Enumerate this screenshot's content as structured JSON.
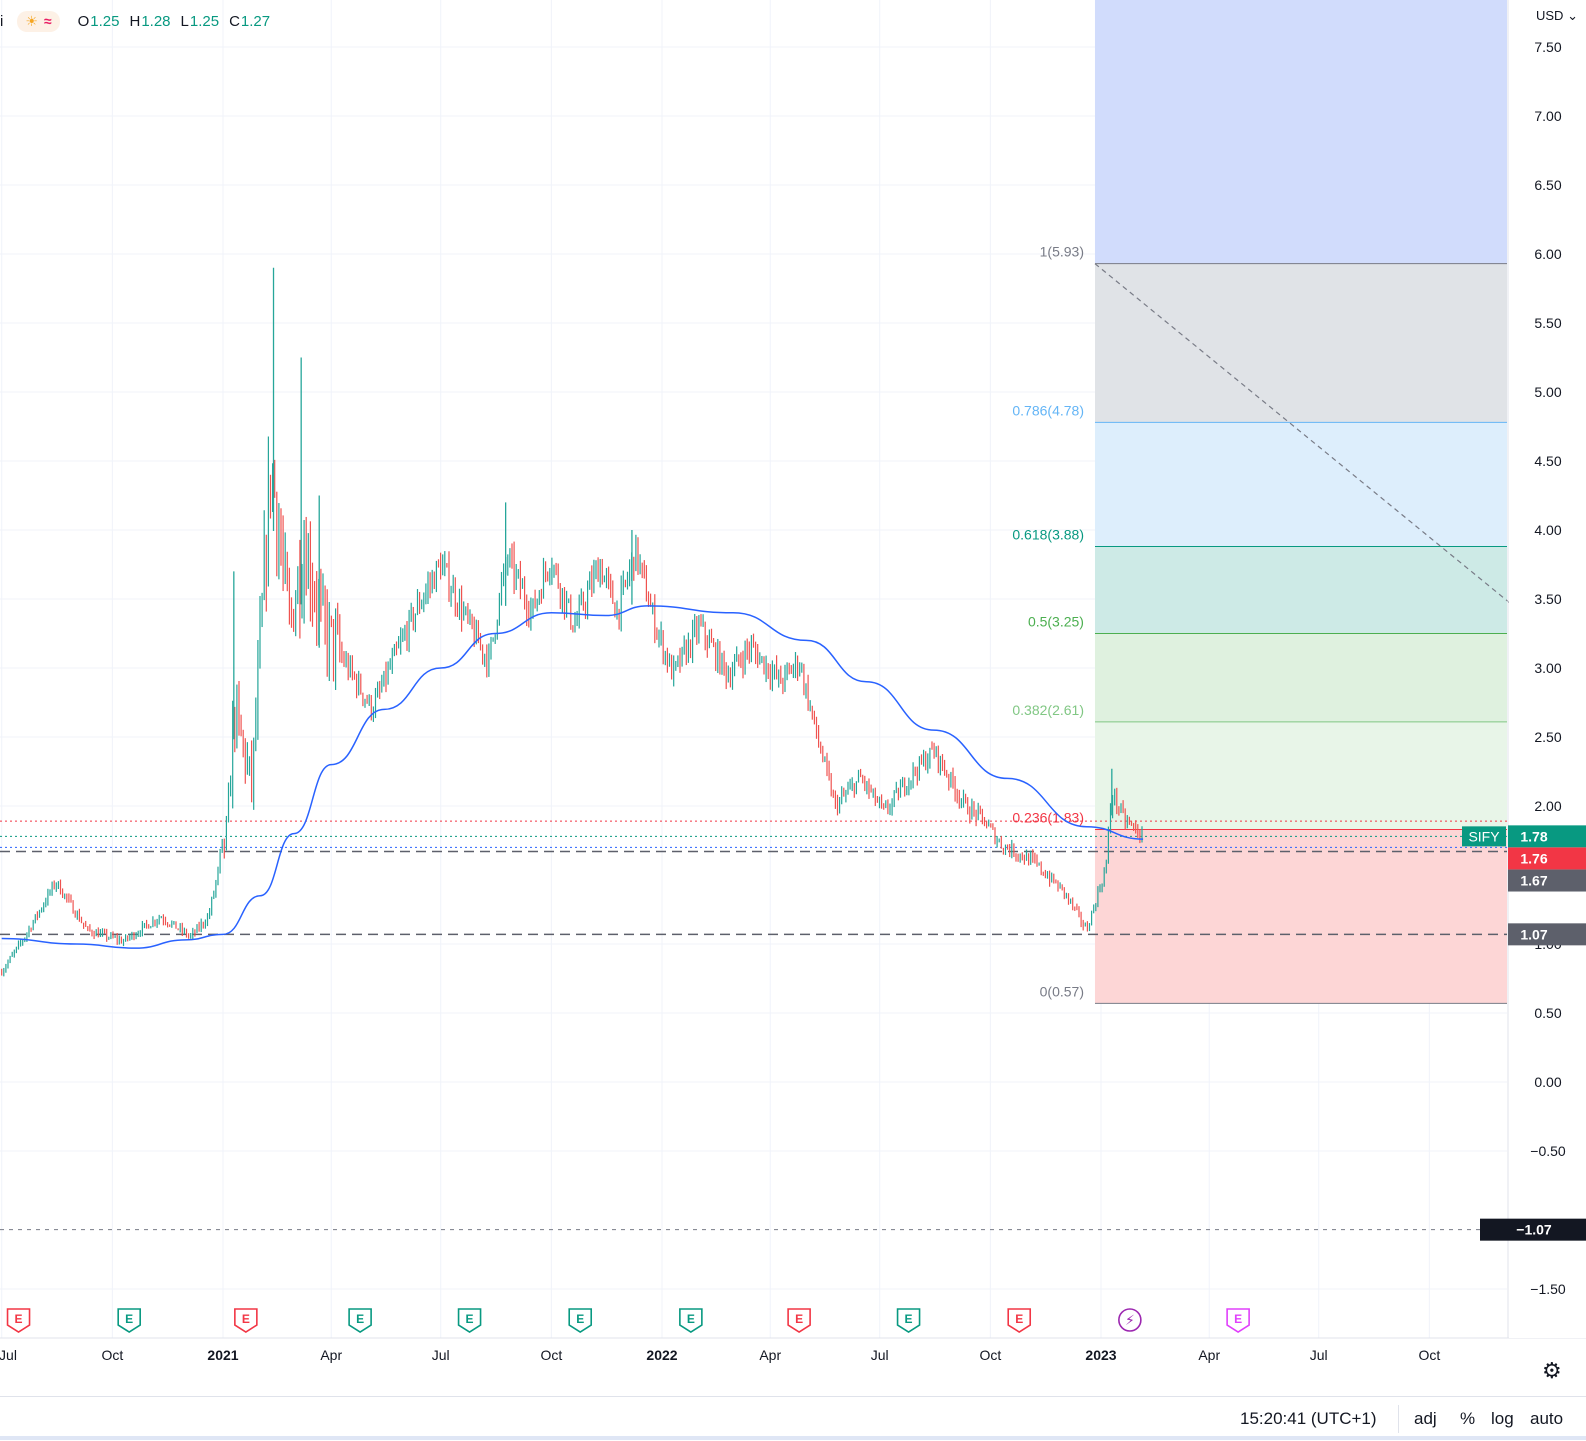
{
  "legend": {
    "symbol": "i",
    "open_key": "O",
    "open": "1.25",
    "high_key": "H",
    "high": "1.28",
    "low_key": "L",
    "low": "1.25",
    "close_key": "C",
    "close": "1.27"
  },
  "currency": "USD",
  "status_bar": {
    "time": "15:20:41 (UTC+1)",
    "options": [
      "adj",
      "%",
      "log",
      "auto"
    ]
  },
  "colors": {
    "up": "#26a69a",
    "down": "#ef5350",
    "ma": "#2962ff",
    "fib_top": "#787b86",
    "fib_0786": "#64b5f6",
    "fib_0618": "#089981",
    "fib_05": "#4caf50",
    "fib_0382": "#81c784",
    "fib_0236": "#f23645",
    "fib_0": "#787b86",
    "last_price_tag": "#089981",
    "red_tag": "#f23645",
    "gray_tag": "#5d606b",
    "dark_tag": "#131722"
  },
  "chart_data": {
    "type": "candlestick",
    "ticker": "SIFY",
    "x_ticks": [
      {
        "date": "2020-07-01",
        "label": "Jul"
      },
      {
        "date": "2020-10-01",
        "label": "Oct"
      },
      {
        "date": "2021-01-01",
        "label": "2021",
        "bold": true
      },
      {
        "date": "2021-04-01",
        "label": "Apr"
      },
      {
        "date": "2021-07-01",
        "label": "Jul"
      },
      {
        "date": "2021-10-01",
        "label": "Oct"
      },
      {
        "date": "2022-01-01",
        "label": "2022",
        "bold": true
      },
      {
        "date": "2022-04-01",
        "label": "Apr"
      },
      {
        "date": "2022-07-01",
        "label": "Jul"
      },
      {
        "date": "2022-10-01",
        "label": "Oct"
      },
      {
        "date": "2023-01-01",
        "label": "2023",
        "bold": true
      },
      {
        "date": "2023-04-01",
        "label": "Apr"
      },
      {
        "date": "2023-07-01",
        "label": "Jul"
      },
      {
        "date": "2023-10-01",
        "label": "Oct"
      }
    ],
    "y_ticks": [
      "7.50",
      "7.00",
      "6.50",
      "6.00",
      "5.50",
      "5.00",
      "4.50",
      "4.00",
      "3.50",
      "3.00",
      "2.50",
      "2.00",
      "1.00",
      "0.50",
      "0.00",
      "−0.50",
      "−1.50"
    ],
    "y_range": [
      -1.75,
      7.75
    ],
    "price_key_points": [
      {
        "date": "2020-07-01",
        "price": 0.8
      },
      {
        "date": "2020-07-20",
        "price": 1.05
      },
      {
        "date": "2020-08-15",
        "price": 1.45
      },
      {
        "date": "2020-09-10",
        "price": 1.1
      },
      {
        "date": "2020-10-10",
        "price": 1.02
      },
      {
        "date": "2020-11-10",
        "price": 1.2
      },
      {
        "date": "2020-12-05",
        "price": 1.05
      },
      {
        "date": "2020-12-20",
        "price": 1.2
      },
      {
        "date": "2021-01-05",
        "price": 1.85
      },
      {
        "date": "2021-01-10",
        "price": 2.7
      },
      {
        "date": "2021-01-25",
        "price": 2.15
      },
      {
        "date": "2021-02-10",
        "price": 4.5
      },
      {
        "date": "2021-02-25",
        "price": 3.3
      },
      {
        "date": "2021-03-10",
        "price": 3.9
      },
      {
        "date": "2021-03-25",
        "price": 3.3
      },
      {
        "date": "2021-04-15",
        "price": 3.0
      },
      {
        "date": "2021-05-05",
        "price": 2.7
      },
      {
        "date": "2021-05-25",
        "price": 3.1
      },
      {
        "date": "2021-06-15",
        "price": 3.5
      },
      {
        "date": "2021-07-01",
        "price": 3.75
      },
      {
        "date": "2021-07-25",
        "price": 3.3
      },
      {
        "date": "2021-08-10",
        "price": 3.05
      },
      {
        "date": "2021-08-25",
        "price": 3.8
      },
      {
        "date": "2021-09-15",
        "price": 3.4
      },
      {
        "date": "2021-09-30",
        "price": 3.8
      },
      {
        "date": "2021-10-20",
        "price": 3.3
      },
      {
        "date": "2021-11-10",
        "price": 3.75
      },
      {
        "date": "2021-11-25",
        "price": 3.4
      },
      {
        "date": "2021-12-10",
        "price": 3.85
      },
      {
        "date": "2021-12-25",
        "price": 3.35
      },
      {
        "date": "2022-01-10",
        "price": 2.95
      },
      {
        "date": "2022-02-01",
        "price": 3.3
      },
      {
        "date": "2022-02-25",
        "price": 2.95
      },
      {
        "date": "2022-03-15",
        "price": 3.15
      },
      {
        "date": "2022-04-10",
        "price": 2.9
      },
      {
        "date": "2022-04-25",
        "price": 3.05
      },
      {
        "date": "2022-05-10",
        "price": 2.5
      },
      {
        "date": "2022-05-25",
        "price": 2.0
      },
      {
        "date": "2022-06-15",
        "price": 2.2
      },
      {
        "date": "2022-07-05",
        "price": 1.95
      },
      {
        "date": "2022-07-25",
        "price": 2.2
      },
      {
        "date": "2022-08-15",
        "price": 2.4
      },
      {
        "date": "2022-09-10",
        "price": 2.0
      },
      {
        "date": "2022-09-25",
        "price": 1.9
      },
      {
        "date": "2022-10-10",
        "price": 1.72
      },
      {
        "date": "2022-11-05",
        "price": 1.6
      },
      {
        "date": "2022-12-01",
        "price": 1.38
      },
      {
        "date": "2022-12-20",
        "price": 1.1
      },
      {
        "date": "2023-01-05",
        "price": 1.55
      },
      {
        "date": "2023-01-10",
        "price": 2.1
      },
      {
        "date": "2023-01-20",
        "price": 1.9
      },
      {
        "date": "2023-02-05",
        "price": 1.78
      }
    ],
    "spikes_high": [
      {
        "date": "2021-01-10",
        "price": 3.7
      },
      {
        "date": "2021-02-12",
        "price": 5.9
      },
      {
        "date": "2021-03-07",
        "price": 5.25
      },
      {
        "date": "2021-03-22",
        "price": 4.25
      },
      {
        "date": "2021-08-24",
        "price": 4.2
      },
      {
        "date": "2021-12-07",
        "price": 4.0
      },
      {
        "date": "2023-01-10",
        "price": 2.27
      }
    ],
    "moving_average": [
      {
        "date": "2020-07-01",
        "price": 1.04
      },
      {
        "date": "2020-09-01",
        "price": 1.0
      },
      {
        "date": "2020-10-20",
        "price": 0.97
      },
      {
        "date": "2020-12-01",
        "price": 1.03
      },
      {
        "date": "2021-01-01",
        "price": 1.07
      },
      {
        "date": "2021-02-01",
        "price": 1.35
      },
      {
        "date": "2021-03-01",
        "price": 1.8
      },
      {
        "date": "2021-04-01",
        "price": 2.3
      },
      {
        "date": "2021-05-15",
        "price": 2.7
      },
      {
        "date": "2021-07-01",
        "price": 3.0
      },
      {
        "date": "2021-08-15",
        "price": 3.25
      },
      {
        "date": "2021-10-01",
        "price": 3.4
      },
      {
        "date": "2021-11-15",
        "price": 3.38
      },
      {
        "date": "2021-12-20",
        "price": 3.45
      },
      {
        "date": "2022-03-01",
        "price": 3.4
      },
      {
        "date": "2022-05-01",
        "price": 3.2
      },
      {
        "date": "2022-06-20",
        "price": 2.9
      },
      {
        "date": "2022-08-15",
        "price": 2.55
      },
      {
        "date": "2022-10-15",
        "price": 2.2
      },
      {
        "date": "2022-12-20",
        "price": 1.85
      },
      {
        "date": "2023-02-05",
        "price": 1.76
      }
    ],
    "horizontal_lines": [
      {
        "price": 1.67,
        "style": "dashed",
        "color": "#5d606b"
      },
      {
        "price": 1.07,
        "style": "dashed",
        "color": "#5d606b"
      },
      {
        "price": 1.89,
        "style": "dotted",
        "color": "#f23645"
      },
      {
        "price": 1.78,
        "style": "dotted",
        "color": "#089981"
      },
      {
        "price": 1.7,
        "style": "dotted",
        "color": "#2962ff"
      },
      {
        "price": -1.07,
        "style": "dashed",
        "color": "#787b86"
      }
    ],
    "fib_retracement": {
      "start_date": "2022-12-27",
      "levels": [
        {
          "ratio": "1",
          "price": 5.93,
          "label": "1(5.93)"
        },
        {
          "ratio": "0.786",
          "price": 4.78,
          "label": "0.786(4.78)"
        },
        {
          "ratio": "0.618",
          "price": 3.88,
          "label": "0.618(3.88)"
        },
        {
          "ratio": "0.5",
          "price": 3.25,
          "label": "0.5(3.25)"
        },
        {
          "ratio": "0.382",
          "price": 2.61,
          "label": "0.382(2.61)"
        },
        {
          "ratio": "0.236",
          "price": 1.83,
          "label": "0.236(1.83)"
        },
        {
          "ratio": "0",
          "price": 0.57,
          "label": "0(0.57)"
        }
      ],
      "zone_above_color": "#d1dcfc",
      "zone_1_0786": "#e0e3e7",
      "zone_0786_0618": "#ddeefc",
      "zone_0618_05": "#cdeae6",
      "zone_05_0382": "#dff1df",
      "zone_0382_0236": "#e8f5e8",
      "zone_0236_0": "#fdd6d6",
      "trend_line": [
        {
          "date": "2022-12-27",
          "price": 5.93
        },
        {
          "date": "2023-12-31",
          "price": 3.3
        }
      ]
    },
    "price_tags": [
      {
        "text": "SIFY",
        "price": 1.78,
        "role": "name"
      },
      {
        "text": "1.78",
        "price": 1.78,
        "role": "last"
      },
      {
        "text": "1.76",
        "price": 1.62,
        "role": "red"
      },
      {
        "text": "1.67",
        "price": 1.46,
        "role": "gray"
      },
      {
        "text": "1.07",
        "price": 1.07,
        "role": "gray"
      },
      {
        "text": "−1.07",
        "price": -1.07,
        "role": "dark"
      }
    ],
    "events": [
      {
        "date": "2020-07-15",
        "type": "E",
        "color": "red"
      },
      {
        "date": "2020-10-15",
        "type": "E",
        "color": "green"
      },
      {
        "date": "2021-01-20",
        "type": "E",
        "color": "red"
      },
      {
        "date": "2021-04-25",
        "type": "E",
        "color": "green"
      },
      {
        "date": "2021-07-25",
        "type": "E",
        "color": "green"
      },
      {
        "date": "2021-10-25",
        "type": "E",
        "color": "green"
      },
      {
        "date": "2022-01-25",
        "type": "E",
        "color": "green"
      },
      {
        "date": "2022-04-25",
        "type": "E",
        "color": "red"
      },
      {
        "date": "2022-07-25",
        "type": "E",
        "color": "green"
      },
      {
        "date": "2022-10-25",
        "type": "E",
        "color": "red"
      },
      {
        "date": "2023-01-25",
        "type": "split",
        "color": "purple"
      },
      {
        "date": "2023-04-25",
        "type": "E",
        "color": "magenta"
      }
    ]
  }
}
